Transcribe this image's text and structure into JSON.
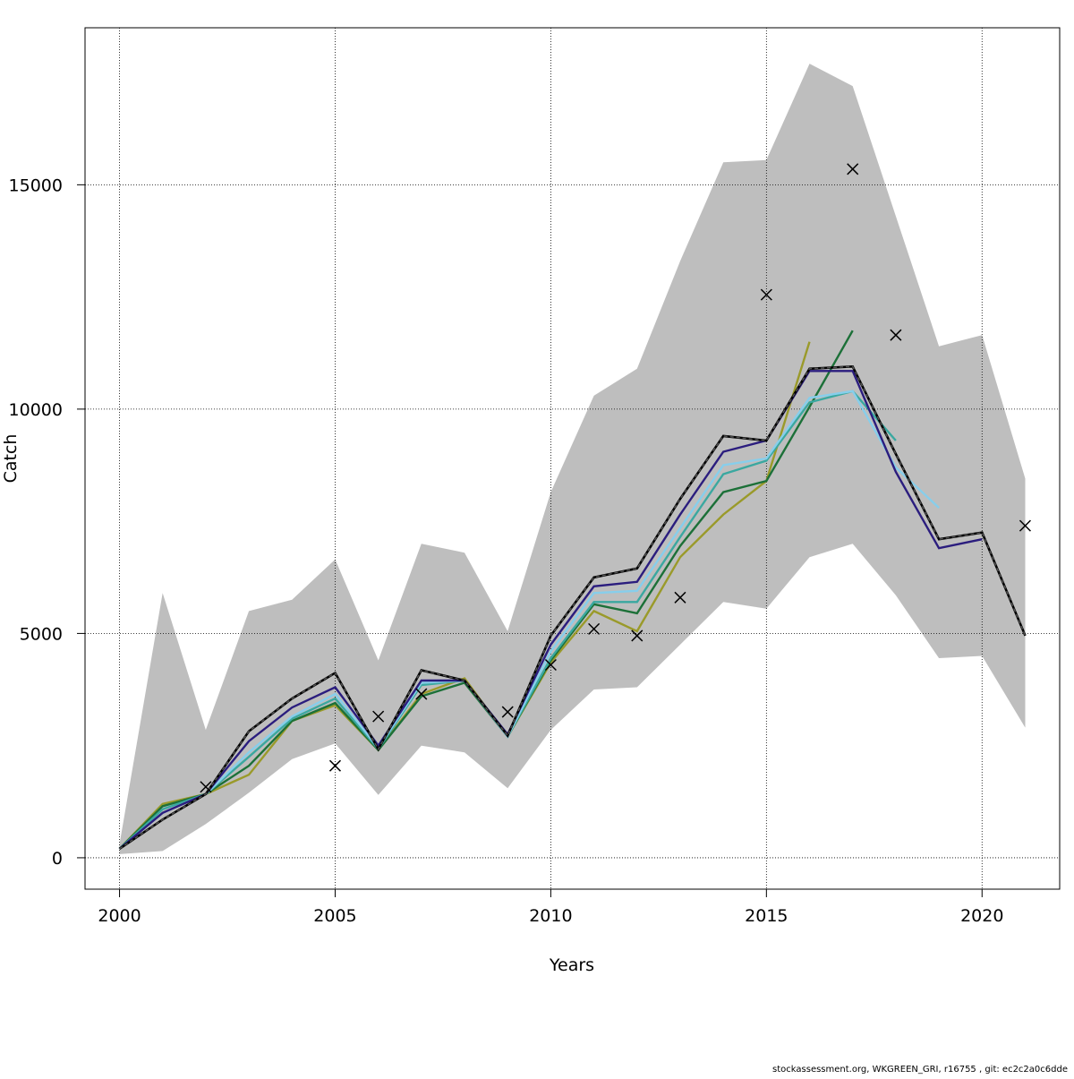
{
  "chart_data": {
    "type": "line",
    "title": "",
    "xlabel": "Years",
    "ylabel": "Catch",
    "xlim": [
      1999.2,
      2021.8
    ],
    "ylim": [
      -700,
      18500
    ],
    "x_ticks": [
      2000,
      2005,
      2010,
      2015,
      2020
    ],
    "y_ticks": [
      0,
      5000,
      10000,
      15000
    ],
    "grid": true,
    "legend": "none",
    "footer_text": "stockassessment.org, WKGREEN_GRI, r16755 , git: ec2c2a0c6dde",
    "colors": {
      "band": "#bebebe",
      "base": "#000000",
      "base_dash": "#555555",
      "observed": "#000000",
      "grid": "#000000"
    },
    "confidence_band": {
      "x": [
        2000,
        2001,
        2002,
        2003,
        2004,
        2005,
        2006,
        2007,
        2008,
        2009,
        2010,
        2011,
        2012,
        2013,
        2014,
        2015,
        2016,
        2017,
        2018,
        2019,
        2020,
        2021
      ],
      "upper": [
        300,
        5900,
        2850,
        5500,
        5750,
        6650,
        4400,
        7000,
        6800,
        5050,
        8150,
        10300,
        10900,
        13300,
        15500,
        15550,
        17700,
        17200,
        14300,
        11400,
        11650,
        8450
      ],
      "lower": [
        80,
        150,
        750,
        1450,
        2200,
        2550,
        1400,
        2500,
        2350,
        1550,
        2850,
        3750,
        3800,
        4750,
        5700,
        5550,
        6700,
        7000,
        5850,
        4450,
        4500,
        2900
      ]
    },
    "base_estimate": {
      "x": [
        2000,
        2001,
        2002,
        2003,
        2004,
        2005,
        2006,
        2007,
        2008,
        2009,
        2010,
        2011,
        2012,
        2013,
        2014,
        2015,
        2016,
        2017,
        2018,
        2019,
        2020,
        2021
      ],
      "values": [
        200,
        850,
        1420,
        2820,
        3550,
        4120,
        2420,
        4180,
        3950,
        2720,
        4950,
        6250,
        6450,
        8000,
        9400,
        9300,
        10900,
        10950,
        9000,
        7100,
        7250,
        4950
      ]
    },
    "observed": {
      "x": [
        2002,
        2005,
        2006,
        2007,
        2009,
        2010,
        2011,
        2012,
        2013,
        2015,
        2017,
        2018,
        2021
      ],
      "values": [
        1580,
        2050,
        3150,
        3650,
        3250,
        4300,
        5100,
        4950,
        5800,
        12550,
        15350,
        11650,
        7400
      ]
    },
    "series": [
      {
        "color": "#2b1d7e",
        "x": [
          2000,
          2001,
          2002,
          2003,
          2004,
          2005,
          2006,
          2007,
          2008,
          2009,
          2010,
          2011,
          2012,
          2013,
          2014,
          2015,
          2016,
          2017,
          2018,
          2019,
          2020
        ],
        "values": [
          200,
          1000,
          1420,
          2600,
          3350,
          3800,
          2500,
          3950,
          3950,
          2750,
          4750,
          6050,
          6150,
          7650,
          9050,
          9300,
          10850,
          10850,
          8600,
          6900,
          7100
        ]
      },
      {
        "color": "#87ceeb",
        "x": [
          2000,
          2001,
          2002,
          2003,
          2004,
          2005,
          2006,
          2007,
          2008,
          2009,
          2010,
          2011,
          2012,
          2013,
          2014,
          2015,
          2016,
          2017,
          2018,
          2019
        ],
        "values": [
          200,
          1000,
          1420,
          2350,
          3150,
          3650,
          2450,
          3900,
          3950,
          2700,
          4600,
          5900,
          5950,
          7350,
          8750,
          8900,
          10250,
          10400,
          8700,
          7800
        ]
      },
      {
        "color": "#3aa8a0",
        "x": [
          2000,
          2001,
          2002,
          2003,
          2004,
          2005,
          2006,
          2007,
          2008,
          2009,
          2010,
          2011,
          2012,
          2013,
          2014,
          2015,
          2016,
          2017,
          2018
        ],
        "values": [
          200,
          1080,
          1420,
          2250,
          3100,
          3550,
          2420,
          3850,
          3950,
          2700,
          4450,
          5700,
          5700,
          7150,
          8550,
          8850,
          10150,
          10400,
          9300
        ]
      },
      {
        "color": "#1c7038",
        "x": [
          2000,
          2001,
          2002,
          2003,
          2004,
          2005,
          2006,
          2007,
          2008,
          2009,
          2010,
          2011,
          2012,
          2013,
          2014,
          2015,
          2016,
          2017
        ],
        "values": [
          200,
          1150,
          1420,
          2050,
          3050,
          3450,
          2400,
          3600,
          3900,
          2700,
          4400,
          5650,
          5450,
          6950,
          8150,
          8400,
          10050,
          11750
        ]
      },
      {
        "color": "#9a9a2a",
        "x": [
          2000,
          2001,
          2002,
          2003,
          2004,
          2005,
          2006,
          2007,
          2008,
          2009,
          2010,
          2011,
          2012,
          2013,
          2014,
          2015,
          2016
        ],
        "values": [
          200,
          1200,
          1420,
          1850,
          3050,
          3400,
          2400,
          3650,
          4000,
          2700,
          4350,
          5500,
          5050,
          6700,
          7650,
          8400,
          11500
        ]
      }
    ]
  }
}
